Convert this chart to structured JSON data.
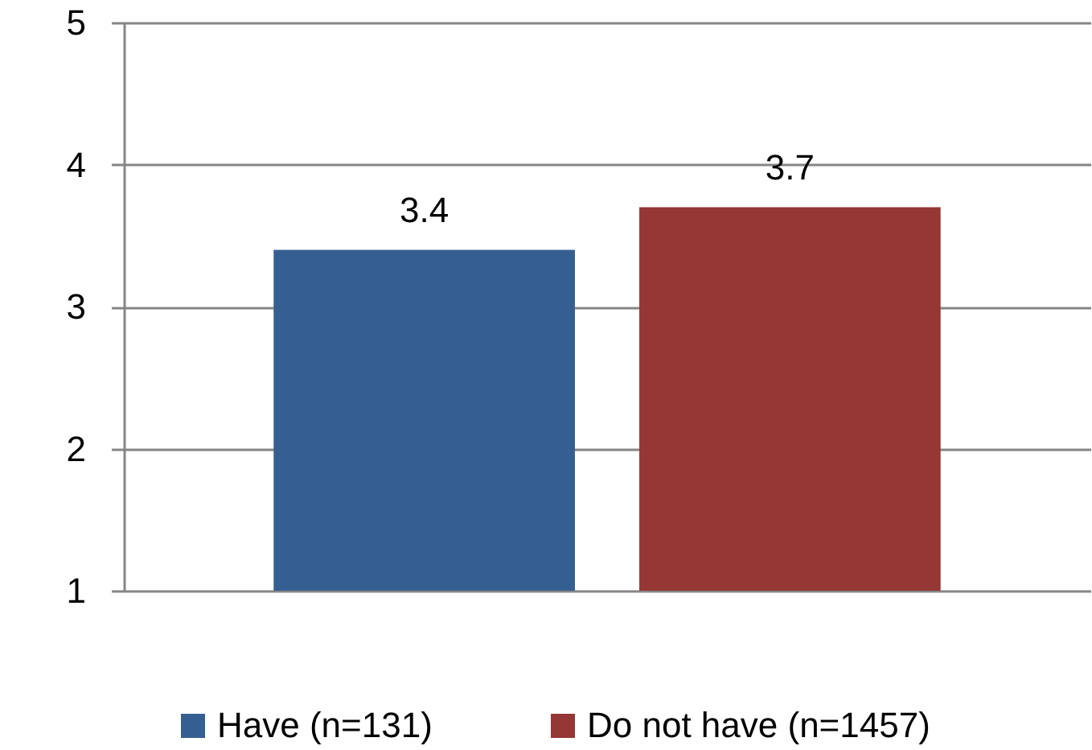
{
  "chart_data": {
    "type": "bar",
    "categories": [
      null
    ],
    "series": [
      {
        "name": "Have (n=131)",
        "color": "#365f91",
        "values": [
          3.4
        ]
      },
      {
        "name": "Do not have (n=1457)",
        "color": "#953735",
        "values": [
          3.7
        ]
      }
    ],
    "ylim": [
      1,
      5
    ],
    "yticks": [
      1,
      2,
      3,
      4,
      5
    ],
    "grid": "y",
    "legend": "bottom",
    "data_labels": true
  }
}
